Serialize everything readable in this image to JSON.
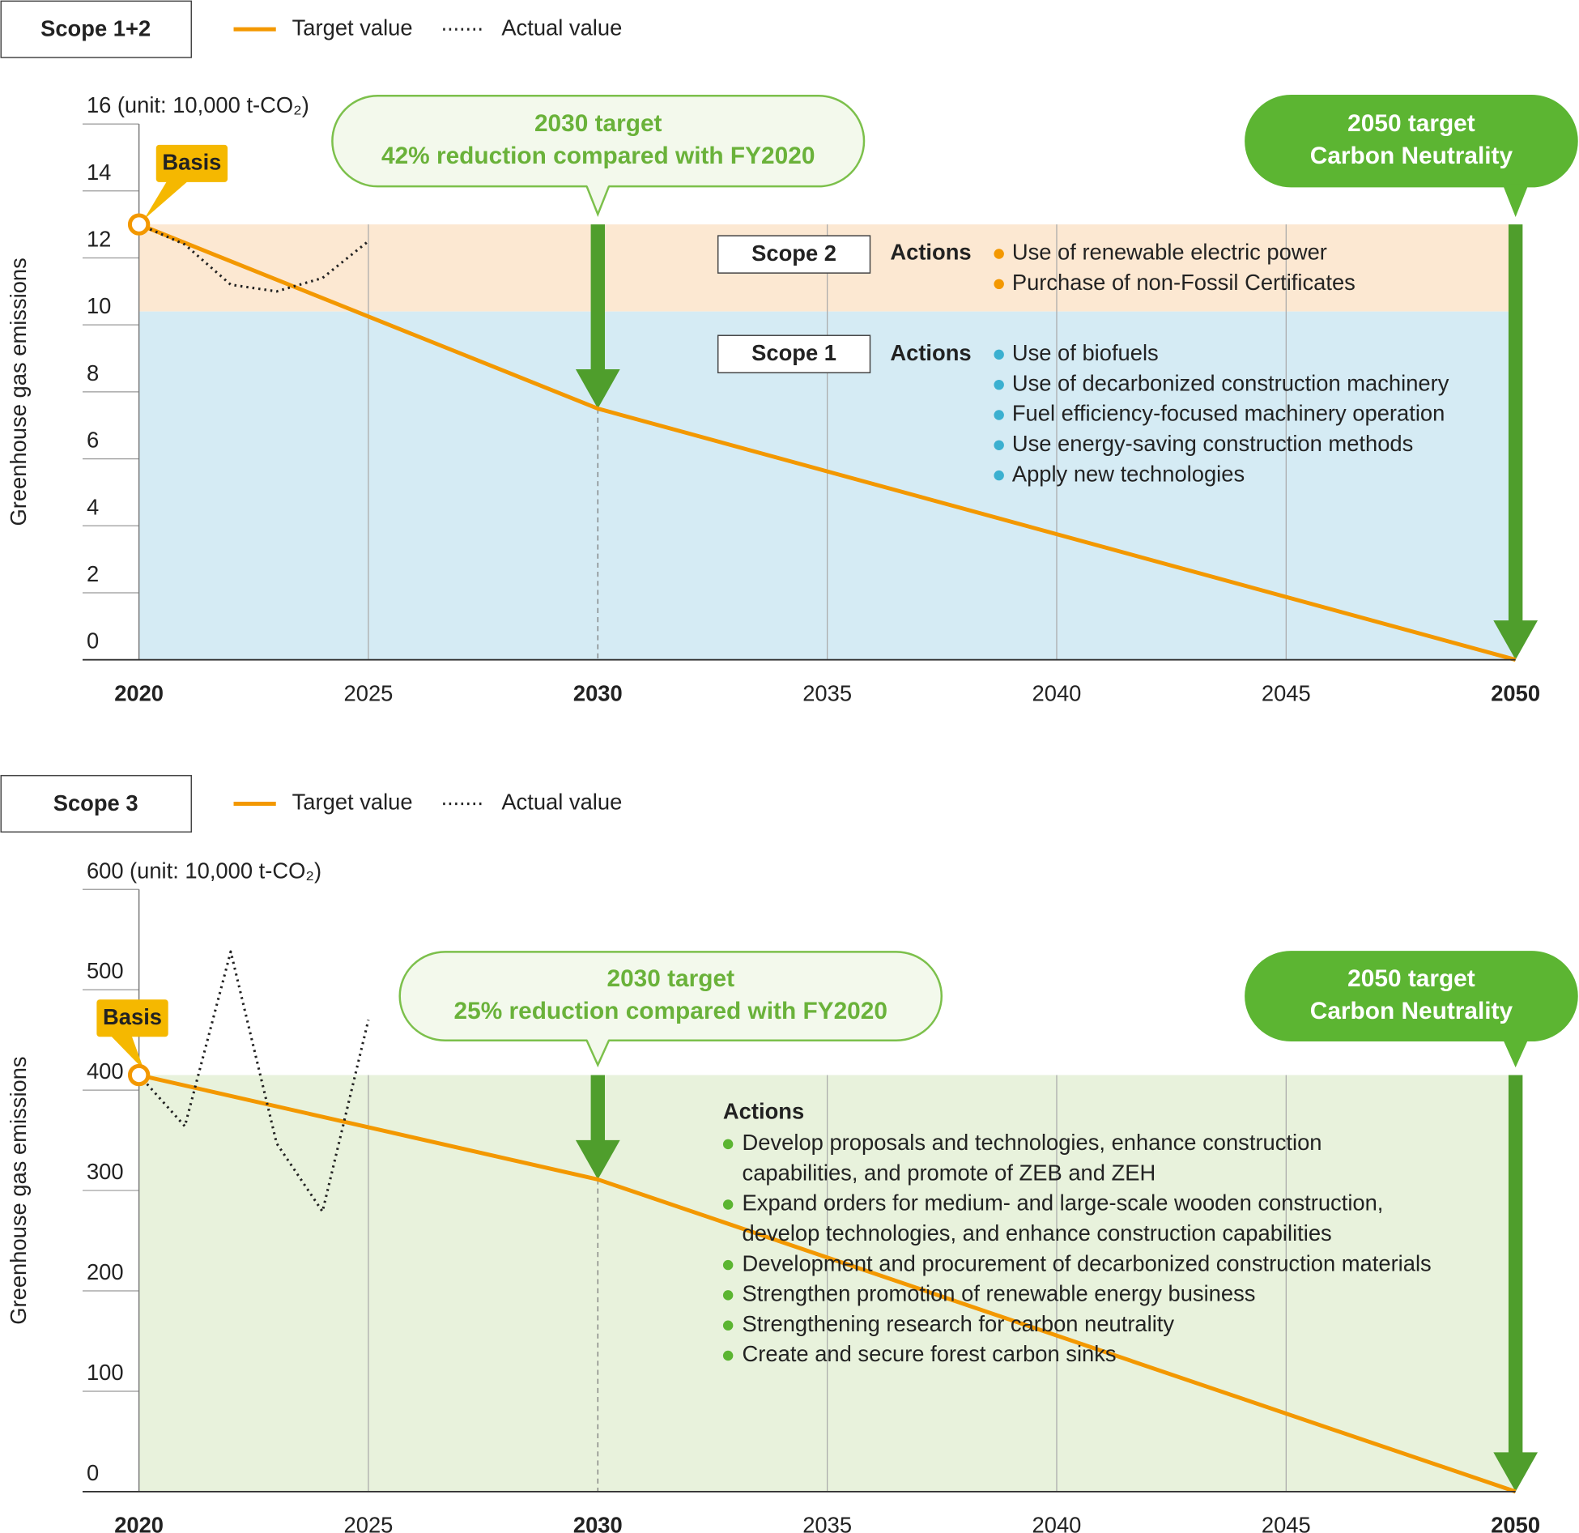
{
  "chart_data": [
    {
      "type": "line",
      "title": "Scope 1+2",
      "ylabel": "Greenhouse gas emissions",
      "unit_label": "(unit: 10,000 t-CO₂)",
      "xlim": [
        2020,
        2050
      ],
      "xticks": [
        2020,
        2025,
        2030,
        2035,
        2040,
        2045,
        2050
      ],
      "emphasized_xticks": [
        2020,
        2030,
        2050
      ],
      "ylim": [
        0,
        16
      ],
      "yticks": [
        0,
        2,
        4,
        6,
        8,
        10,
        12,
        14,
        16
      ],
      "series": [
        {
          "name": "Target value",
          "color": "#f39800",
          "style": "solid",
          "x": [
            2020,
            2030,
            2050
          ],
          "values": [
            13,
            7.5,
            0
          ]
        },
        {
          "name": "Actual value",
          "color": "#222222",
          "style": "dotted",
          "x": [
            2020,
            2021,
            2022,
            2023,
            2024,
            2025
          ],
          "values": [
            13,
            12.4,
            11.2,
            11,
            11.4,
            12.5
          ]
        }
      ],
      "bands": [
        {
          "label": "Scope 2",
          "from": 10.4,
          "to": 13,
          "color": "#fce8d2"
        },
        {
          "label": "Scope 1",
          "from": 0,
          "to": 10.4,
          "color": "#d5ebf4"
        }
      ],
      "basis_label": "Basis",
      "callouts": [
        {
          "year": 2030,
          "lines": [
            "2030 target",
            "42% reduction compared with FY2020"
          ]
        },
        {
          "year": 2050,
          "lines": [
            "2050 target",
            "Carbon Neutrality"
          ]
        }
      ],
      "actions": [
        {
          "scope": "Scope 2",
          "heading": "Actions",
          "color": "#f39800",
          "items": [
            [
              "Use of renewable electric power"
            ],
            [
              "Purchase of non-Fossil Certificates"
            ]
          ]
        },
        {
          "scope": "Scope 1",
          "heading": "Actions",
          "color": "#3bb0d0",
          "items": [
            [
              "Use of biofuels"
            ],
            [
              "Use of decarbonized construction machinery"
            ],
            [
              "Fuel efficiency-focused machinery operation"
            ],
            [
              "Use energy-saving construction methods"
            ],
            [
              "Apply new technologies"
            ]
          ]
        }
      ]
    },
    {
      "type": "line",
      "title": "Scope 3",
      "ylabel": "Greenhouse gas emissions",
      "unit_label": "(unit: 10,000 t-CO₂)",
      "xlim": [
        2020,
        2050
      ],
      "xticks": [
        2020,
        2025,
        2030,
        2035,
        2040,
        2045,
        2050
      ],
      "emphasized_xticks": [
        2020,
        2030,
        2050
      ],
      "ylim": [
        0,
        600
      ],
      "yticks": [
        0,
        100,
        200,
        300,
        400,
        500,
        600
      ],
      "series": [
        {
          "name": "Target value",
          "color": "#f39800",
          "style": "solid",
          "x": [
            2020,
            2030,
            2050
          ],
          "values": [
            415,
            311,
            0
          ]
        },
        {
          "name": "Actual value",
          "color": "#222222",
          "style": "dotted",
          "x": [
            2020,
            2021,
            2022,
            2023,
            2024,
            2025
          ],
          "values": [
            415,
            364,
            538,
            347,
            279,
            470
          ]
        }
      ],
      "bands": [
        {
          "from": 0,
          "to": 415,
          "color": "#e8f2dc"
        }
      ],
      "basis_label": "Basis",
      "callouts": [
        {
          "year": 2030,
          "lines": [
            "2030 target",
            "25% reduction compared with FY2020"
          ]
        },
        {
          "year": 2050,
          "lines": [
            "2050 target",
            "Carbon Neutrality"
          ]
        }
      ],
      "actions": [
        {
          "heading": "Actions",
          "color": "#5bb531",
          "items": [
            [
              "Develop proposals and technologies, enhance construction",
              "capabilities, and promote of ZEB and ZEH"
            ],
            [
              "Expand orders for medium- and large-scale wooden construction,",
              "develop technologies, and enhance construction capabilities"
            ],
            [
              "Development and procurement of decarbonized construction materials"
            ],
            [
              "Strengthen promotion of renewable energy business"
            ],
            [
              "Strengthening research for carbon neutrality"
            ],
            [
              "Create and secure forest carbon sinks"
            ]
          ]
        }
      ]
    }
  ]
}
